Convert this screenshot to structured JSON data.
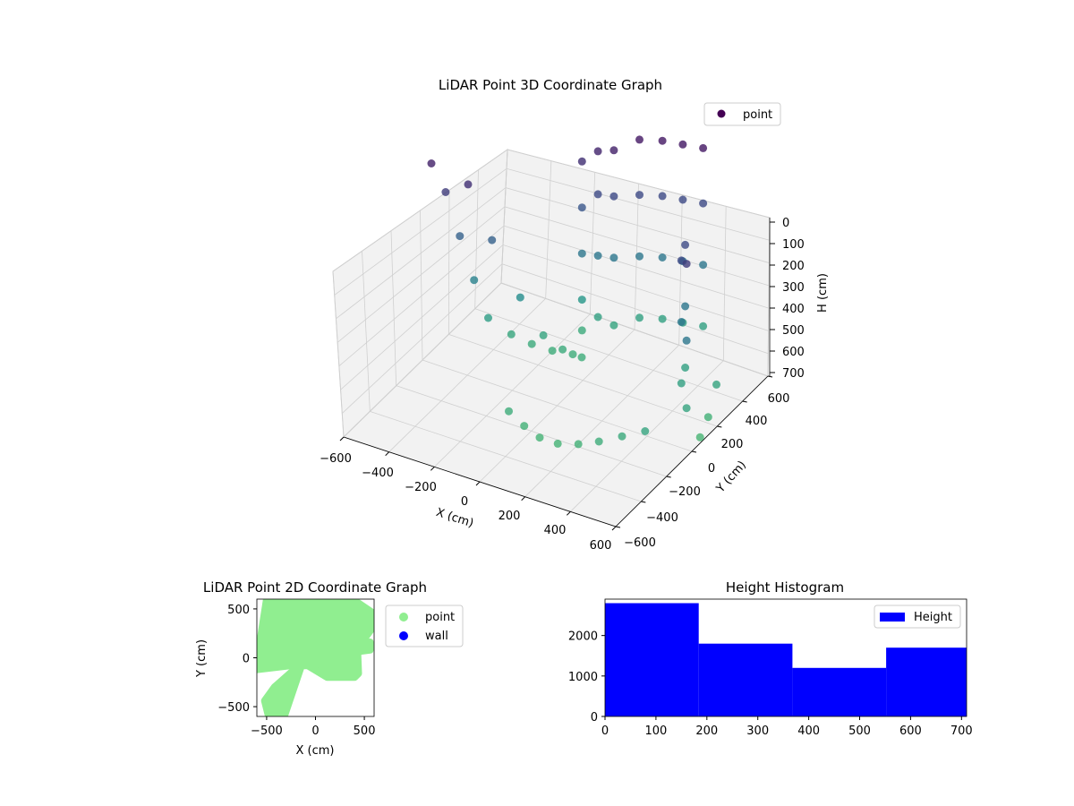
{
  "colors": {
    "viridis_dark": "#440154",
    "viridis_mid": "#2c7f8e",
    "viridis_teal": "#21a386",
    "viridis_light": "#a5db36",
    "point_2d": "#90ee90",
    "wall": "#0000ff",
    "hist_bar": "#0000ff",
    "pane": "#f2f2f2",
    "grid": "#d0d0d0"
  },
  "chart_data": [
    {
      "type": "scatter",
      "projection": "3d",
      "title": "LiDAR Point 3D Coordinate Graph",
      "xlabel": "X (cm)",
      "ylabel": "Y (cm)",
      "zlabel": "H (cm)",
      "xlim": [
        -600,
        600
      ],
      "ylim": [
        -600,
        600
      ],
      "zlim": [
        0,
        700
      ],
      "z_inverted": true,
      "xticks": [
        "−600",
        "−400",
        "−200",
        "0",
        "200",
        "400",
        "600"
      ],
      "yticks": [
        "−600",
        "−400",
        "−200",
        "0",
        "200",
        "400",
        "600"
      ],
      "zticks": [
        "0",
        "100",
        "200",
        "300",
        "400",
        "500",
        "600",
        "700"
      ],
      "legend": {
        "position": "top-right",
        "entries": [
          "point"
        ]
      },
      "colormap": "viridis",
      "grid": true,
      "x": [
        -560,
        -520,
        -480,
        -440,
        -400,
        -320,
        -240,
        -160,
        -80,
        -420,
        -360,
        -280,
        -200,
        -120,
        -40,
        -120,
        -120,
        -120,
        -120,
        -120,
        -60,
        -60,
        -60,
        -60,
        0,
        0,
        0,
        0,
        80,
        80,
        80,
        80,
        160,
        160,
        160,
        160,
        240,
        240,
        240,
        240,
        320,
        320,
        320,
        320,
        400,
        400,
        400,
        440,
        440,
        440,
        520,
        520,
        520,
        -100,
        -20,
        60,
        140,
        220,
        300,
        380,
        460,
        540,
        560,
        580
      ],
      "y": [
        0,
        40,
        80,
        120,
        160,
        200,
        220,
        240,
        260,
        40,
        120,
        200,
        240,
        250,
        260,
        400,
        400,
        400,
        400,
        400,
        420,
        420,
        420,
        420,
        440,
        440,
        440,
        440,
        500,
        500,
        500,
        500,
        540,
        540,
        540,
        540,
        560,
        560,
        560,
        560,
        580,
        580,
        580,
        580,
        300,
        300,
        300,
        200,
        200,
        200,
        100,
        100,
        100,
        -200,
        -220,
        -240,
        -240,
        -220,
        -200,
        -160,
        -120,
        300,
        200,
        100
      ],
      "h": [
        50,
        150,
        300,
        450,
        580,
        630,
        650,
        660,
        660,
        100,
        300,
        500,
        620,
        650,
        660,
        100,
        250,
        400,
        550,
        650,
        60,
        200,
        400,
        600,
        50,
        200,
        400,
        620,
        20,
        200,
        400,
        600,
        20,
        200,
        400,
        600,
        20,
        200,
        400,
        600,
        20,
        200,
        400,
        600,
        200,
        400,
        600,
        200,
        400,
        600,
        150,
        400,
        620,
        660,
        680,
        690,
        690,
        680,
        660,
        640,
        620,
        620,
        680,
        700
      ]
    },
    {
      "type": "scatter",
      "title": "LiDAR Point 2D Coordinate Graph",
      "xlabel": "X (cm)",
      "ylabel": "Y (cm)",
      "xlim": [
        -600,
        600
      ],
      "ylim": [
        -600,
        600
      ],
      "xticks": [
        "−500",
        "0",
        "500"
      ],
      "yticks": [
        "500",
        "0",
        "−500"
      ],
      "legend": {
        "position": "outside-right",
        "entries": [
          "point",
          "wall"
        ]
      },
      "series": [
        {
          "name": "point",
          "regions": [
            {
              "shape": "body",
              "x": [
                -500,
                -350,
                0,
                380,
                600,
                600,
                430,
                440,
                400,
                120,
                -80,
                -250,
                -600,
                -600
              ],
              "y": [
                600,
                600,
                600,
                600,
                450,
                330,
                100,
                -160,
                -200,
                -200,
                -80,
                -80,
                -120,
                -40
              ]
            },
            {
              "shape": "arm-lower-left",
              "x": [
                -250,
                -150,
                -320,
                -480,
                -520,
                -420
              ],
              "y": [
                -150,
                -100,
                -600,
                -600,
                -440,
                -300
              ]
            },
            {
              "shape": "arm-right",
              "x": [
                400,
                560,
                560,
                400
              ],
              "y": [
                140,
                160,
                80,
                60
              ]
            }
          ]
        },
        {
          "name": "wall",
          "regions": []
        }
      ]
    },
    {
      "type": "bar",
      "title": "Height Histogram",
      "xlim": [
        0,
        710
      ],
      "ylim": [
        0,
        2900
      ],
      "xticks": [
        "0",
        "100",
        "200",
        "300",
        "400",
        "500",
        "600",
        "700"
      ],
      "yticks": [
        "0",
        "1000",
        "2000"
      ],
      "legend": {
        "position": "top-right",
        "entries": [
          "Height"
        ]
      },
      "bins": [
        {
          "start": 0,
          "end": 184,
          "count": 2800
        },
        {
          "start": 184,
          "end": 368,
          "count": 1800
        },
        {
          "start": 368,
          "end": 552,
          "count": 1200
        },
        {
          "start": 552,
          "end": 710,
          "count": 1700
        }
      ]
    }
  ]
}
